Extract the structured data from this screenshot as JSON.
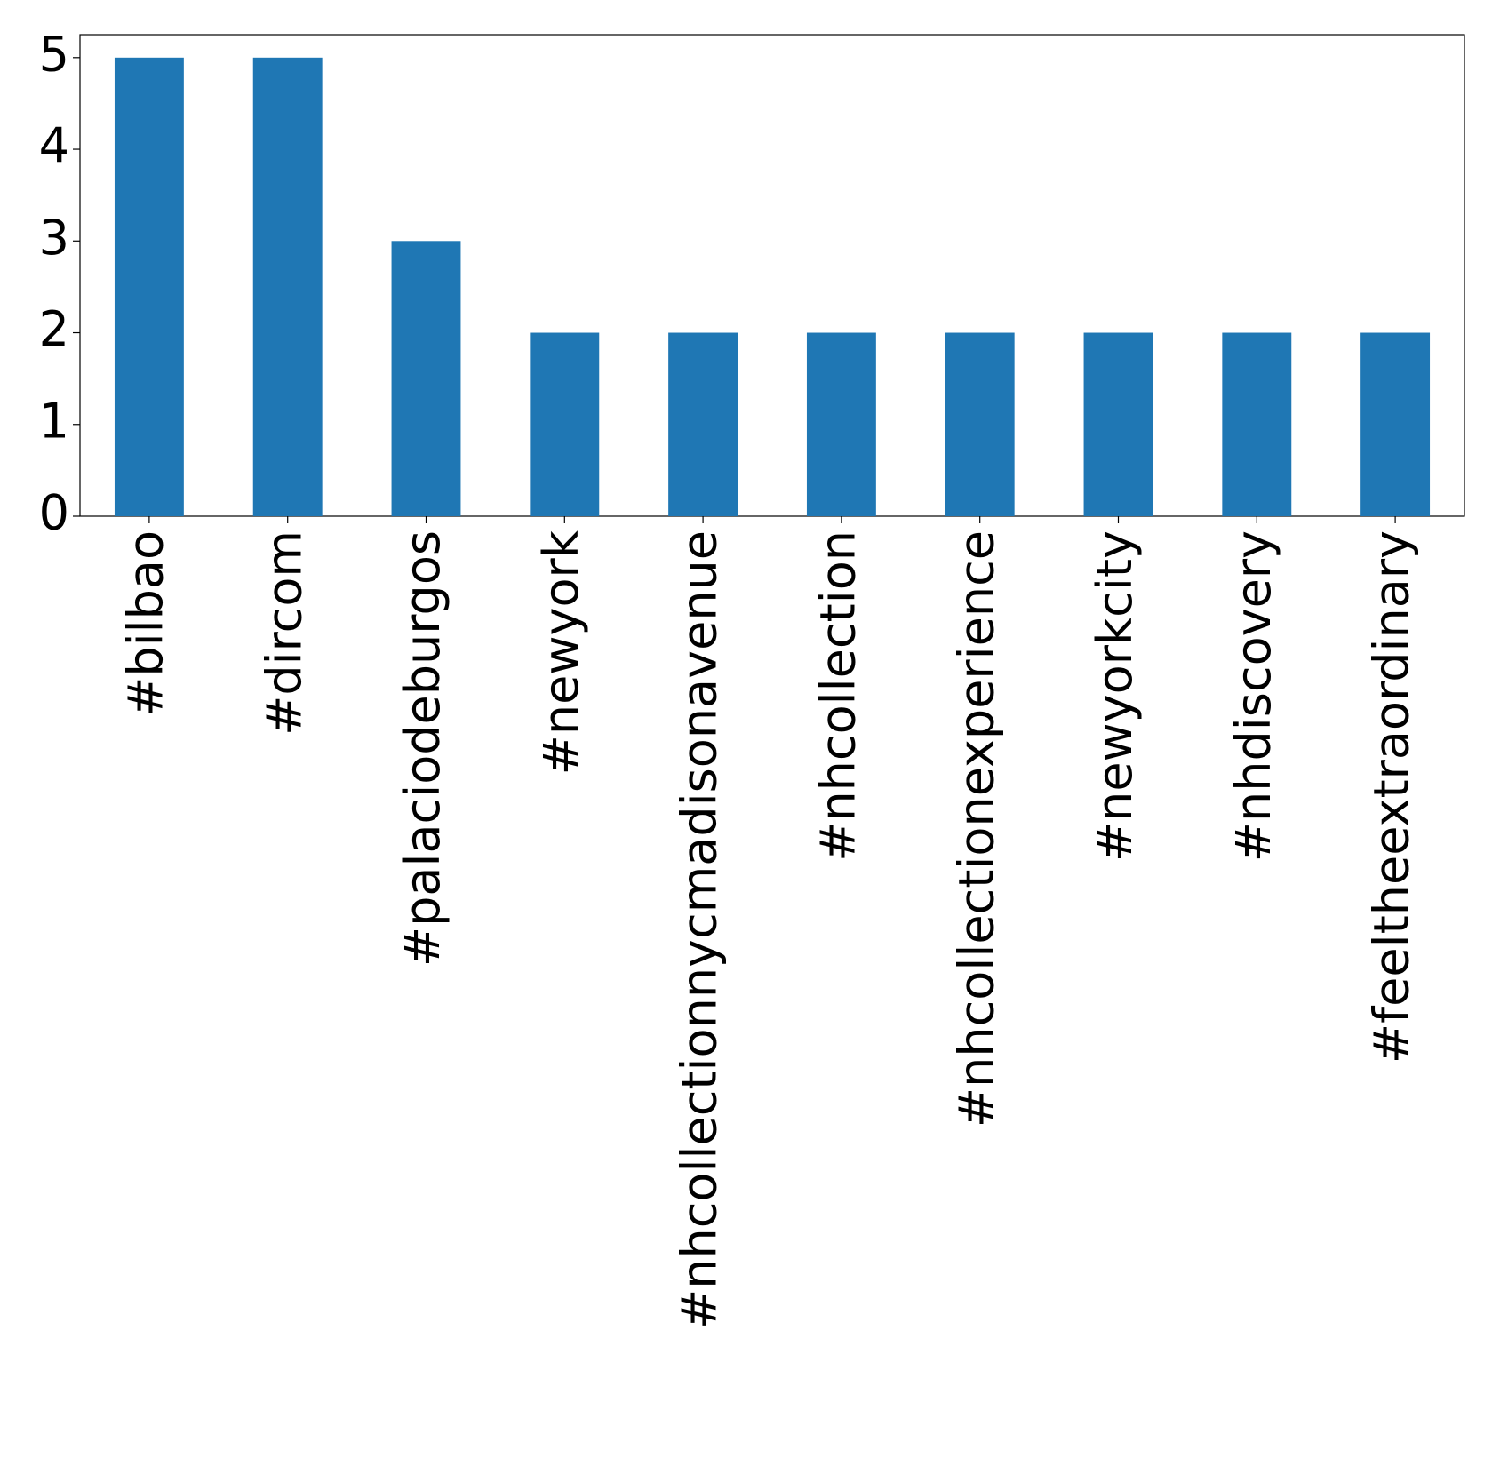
{
  "chart_data": {
    "type": "bar",
    "categories": [
      "#bilbao",
      "#dircom",
      "#palaciodeburgos",
      "#newyork",
      "#nhcollectionnycmadisonavenue",
      "#nhcollection",
      "#nhcollectionexperience",
      "#newyorkcity",
      "#nhdiscovery",
      "#feeltheextraordinary"
    ],
    "values": [
      5,
      5,
      3,
      2,
      2,
      2,
      2,
      2,
      2,
      2
    ],
    "color": "#1f77b4",
    "ylim": [
      0,
      5.25
    ],
    "yticks": [
      0,
      1,
      2,
      3,
      4,
      5
    ],
    "grid": false
  }
}
